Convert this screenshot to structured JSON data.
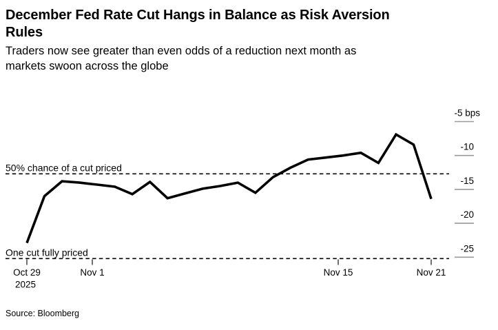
{
  "header": {
    "title_lines": [
      "December Fed Rate Cut Hangs in Balance as Risk Aversion",
      "Rules"
    ],
    "subtitle_lines": [
      "Traders now see greater than even odds of a reduction next month as",
      "markets swoon across the globe"
    ]
  },
  "chart_data": {
    "type": "line",
    "title": "December Fed Rate Cut Hangs in Balance as Risk Aversion Rules",
    "unit": "bps",
    "x": [
      "Oct 29",
      "Oct 30",
      "Oct 31",
      "Nov 1",
      "Nov 2",
      "Nov 3",
      "Nov 4",
      "Nov 5",
      "Nov 6",
      "Nov 7",
      "Nov 8",
      "Nov 9",
      "Nov 10",
      "Nov 11",
      "Nov 12",
      "Nov 13",
      "Nov 14",
      "Nov 15",
      "Nov 16",
      "Nov 17",
      "Nov 18",
      "Nov 19",
      "Nov 20",
      "Nov 21"
    ],
    "values": [
      -22.9,
      -16.0,
      -13.8,
      -14.0,
      -14.3,
      -14.6,
      -15.7,
      -13.9,
      -16.3,
      -15.6,
      -14.9,
      -14.5,
      -14.0,
      -15.5,
      -13.2,
      -11.8,
      -10.6,
      -10.3,
      -10.0,
      -9.6,
      -11.1,
      -6.9,
      -8.4,
      -16.4
    ],
    "ylim": [
      -27,
      -4
    ],
    "grid": false,
    "legend": "none",
    "y_ticks": [
      {
        "value": -5,
        "label": "-5 bps"
      },
      {
        "value": -10,
        "label": "-10"
      },
      {
        "value": -15,
        "label": "-15"
      },
      {
        "value": -20,
        "label": "-20"
      },
      {
        "value": -25,
        "label": "-25"
      }
    ],
    "x_ticks": [
      {
        "label": "Oct 29",
        "sublabel": "2025"
      },
      {
        "label": "Nov 1",
        "sublabel": ""
      },
      {
        "label": "Nov 15",
        "sublabel": ""
      },
      {
        "label": "Nov 21",
        "sublabel": ""
      }
    ],
    "annotations": [
      {
        "label": "50% chance of a cut priced",
        "value": -12.5
      },
      {
        "label": "One cut fully priced",
        "value": -25
      }
    ],
    "line_color": "#000000"
  },
  "source": {
    "label": "Source: Bloomberg"
  },
  "colors": {
    "background": "#ffffff",
    "text": "#000000",
    "axis_tick": "#999999",
    "x_tick": "#222222",
    "line": "#000000"
  }
}
